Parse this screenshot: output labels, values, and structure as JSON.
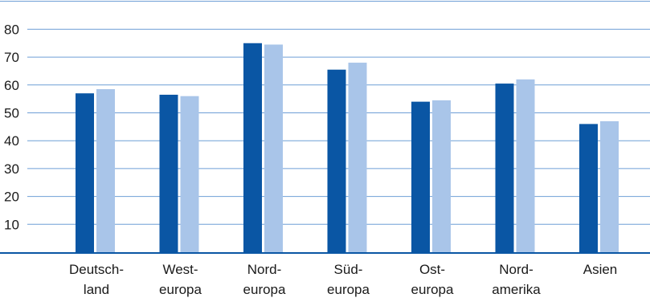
{
  "chart_data": {
    "type": "bar",
    "categories": [
      [
        "Deutsch-",
        "land"
      ],
      [
        "West-",
        "europa"
      ],
      [
        "Nord-",
        "europa"
      ],
      [
        "Süd-",
        "europa"
      ],
      [
        "Ost-",
        "europa"
      ],
      [
        "Nord-",
        "amerika"
      ],
      [
        "Asien"
      ]
    ],
    "series": [
      {
        "values": [
          57,
          56.5,
          75,
          65.5,
          54,
          60.5,
          46
        ],
        "color": "#0a56a4"
      },
      {
        "values": [
          58.5,
          56,
          74.5,
          68,
          54.5,
          62,
          47
        ],
        "color": "#a9c5e9"
      }
    ],
    "yticks": [
      10,
      20,
      30,
      40,
      50,
      60,
      70,
      80
    ],
    "ylim": [
      0,
      80
    ],
    "title": "",
    "xlabel": "",
    "ylabel": "",
    "grid": true,
    "grid_color": "#6f9fd6",
    "axis_color": "#0a56a4"
  }
}
